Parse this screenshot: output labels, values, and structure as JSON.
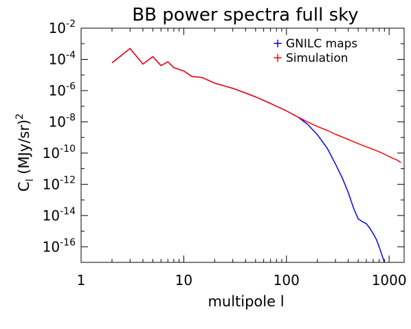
{
  "chart_data": {
    "type": "line",
    "title": "BB power spectra full sky",
    "xlabel": "multipole l",
    "ylabel": "C_l (MJy/sr)^2",
    "xscale": "log",
    "yscale": "log",
    "xlim": [
      1,
      1400
    ],
    "ylim": [
      1e-17,
      0.01
    ],
    "x_ticks": [
      {
        "value": 1,
        "label": "1"
      },
      {
        "value": 10,
        "label": "10"
      },
      {
        "value": 100,
        "label": "100"
      },
      {
        "value": 1000,
        "label": "1000"
      }
    ],
    "y_ticks": [
      {
        "value": 0.01,
        "base": "10",
        "exp": "-2"
      },
      {
        "value": 0.0001,
        "base": "10",
        "exp": "-4"
      },
      {
        "value": 1e-06,
        "base": "10",
        "exp": "-6"
      },
      {
        "value": 1e-08,
        "base": "10",
        "exp": "-8"
      },
      {
        "value": 1e-10,
        "base": "10",
        "exp": "-10"
      },
      {
        "value": 1e-12,
        "base": "10",
        "exp": "-12"
      },
      {
        "value": 1e-14,
        "base": "10",
        "exp": "-14"
      },
      {
        "value": 1e-16,
        "base": "10",
        "exp": "-16"
      }
    ],
    "legend": {
      "placement": "top-right",
      "marker": "+"
    },
    "series": [
      {
        "name": "GNILC maps",
        "color": "#0000ff",
        "x": [
          2,
          3,
          4,
          5,
          6,
          7,
          8,
          10,
          12,
          15,
          20,
          30,
          40,
          50,
          70,
          100,
          130,
          160,
          200,
          250,
          300,
          350,
          400,
          450,
          500,
          550,
          600,
          650,
          700,
          750,
          800,
          850,
          900
        ],
        "y": [
          6e-05,
          0.0005,
          5e-05,
          0.00015,
          4e-05,
          7e-05,
          3e-05,
          1.8e-05,
          8e-06,
          7e-06,
          3e-06,
          1.4e-06,
          7e-07,
          4e-07,
          1.5e-07,
          5e-08,
          2e-08,
          7e-09,
          1.5e-09,
          2e-10,
          2e-11,
          2.5e-12,
          3e-13,
          3e-14,
          6e-15,
          4e-15,
          3e-15,
          1.5e-15,
          7e-16,
          3e-16,
          1e-16,
          3e-17,
          1e-17
        ]
      },
      {
        "name": "Simulation",
        "color": "#ff0000",
        "x": [
          2,
          3,
          4,
          5,
          6,
          7,
          8,
          10,
          12,
          15,
          20,
          30,
          40,
          50,
          70,
          100,
          130,
          160,
          200,
          250,
          300,
          400,
          500,
          600,
          700,
          800,
          900,
          1000,
          1100,
          1200,
          1300
        ],
        "y": [
          6e-05,
          0.0005,
          5e-05,
          0.00015,
          4e-05,
          7e-05,
          3e-05,
          1.8e-05,
          8e-06,
          7e-06,
          3e-06,
          1.4e-06,
          7e-07,
          4e-07,
          1.5e-07,
          5e-08,
          2e-08,
          1e-08,
          5e-09,
          2.8e-09,
          1.6e-09,
          7.5e-10,
          4e-10,
          2.5e-10,
          1.7e-10,
          1.2e-10,
          8.5e-11,
          6e-11,
          4.5e-11,
          3.5e-11,
          2.5e-11
        ]
      }
    ]
  }
}
